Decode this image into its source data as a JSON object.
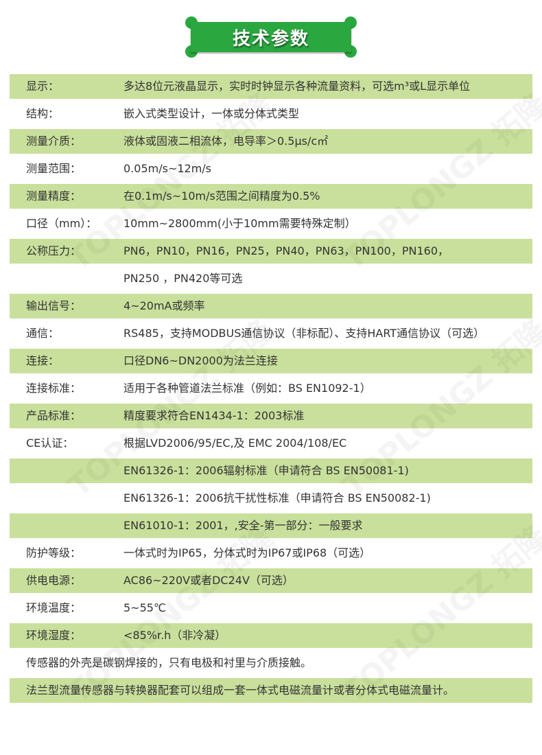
{
  "header": {
    "title": "技术参数"
  },
  "watermark": "TOPLONGZ 拓隆",
  "colors": {
    "banner": "#2aa73f",
    "row_stripe": "#c9e09c"
  },
  "rows": [
    {
      "label": "显示：",
      "value": "多达8位元液晶显示，实时时钟显示各种流量资料，可选m³或L显示单位"
    },
    {
      "label": "结构：",
      "value": "嵌入式类型设计，一体或分体式类型"
    },
    {
      "label": "测量介质：",
      "value": "液体或固液二相流体，电导率＞0.5μs/c㎡"
    },
    {
      "label": "测量范围：",
      "value": "0.05m/s~12m/s"
    },
    {
      "label": "测量精度：",
      "value": "在0.1m/s~10m/s范围之间精度为0.5%"
    },
    {
      "label": "口径（mm）：",
      "value": "10mm~2800mm(小于10mm需要特殊定制）"
    },
    {
      "label": "公称压力：",
      "value": "PN6，PN10，PN16，PN25，PN40，PN63，PN100，PN160，"
    },
    {
      "label": "",
      "value": "PN250 ，PN420等可选"
    },
    {
      "label": "输出信号：",
      "value": "4~20mA或频率"
    },
    {
      "label": "通信：",
      "value": "RS485，支持MODBUS通信协议（非标配）、支持HART通信协议（可选）"
    },
    {
      "label": "连接：",
      "value": "口径DN6~DN2000为法兰连接"
    },
    {
      "label": "连接标准：",
      "value": "适用于各种管道法兰标准（例如：BS EN1092-1）"
    },
    {
      "label": "产品标准：",
      "value": "精度要求符合EN1434-1：2003标准"
    },
    {
      "label": "CE认证：",
      "value": "根据LVD2006/95/EC,及 EMC 2004/108/EC"
    },
    {
      "label": "",
      "value": "EN61326-1：2006辐射标准（申请符合 BS EN50081-1)"
    },
    {
      "label": "",
      "value": " EN61326-1：2006抗干扰性标准（申请符合 BS EN50082-1)"
    },
    {
      "label": "",
      "value": "EN61010-1：2001，,安全-第一部分：一般要求"
    },
    {
      "label": "防护等级：",
      "value": "一体式时为IP65，分体式时为IP67或IP68（可选）"
    },
    {
      "label": "供电电源：",
      "value": "AC86~220V或者DC24V（可选）"
    },
    {
      "label": "环境温度：",
      "value": "5~55℃"
    },
    {
      "label": "环境湿度：",
      "value": "<85%r.h（非冷凝）"
    }
  ],
  "notes": [
    "传感器的外壳是碳钢焊接的，只有电极和衬里与介质接触。",
    "法兰型流量传感器与转换器配套可以组成一套一体式电磁流量计或者分体式电磁流量计。"
  ]
}
